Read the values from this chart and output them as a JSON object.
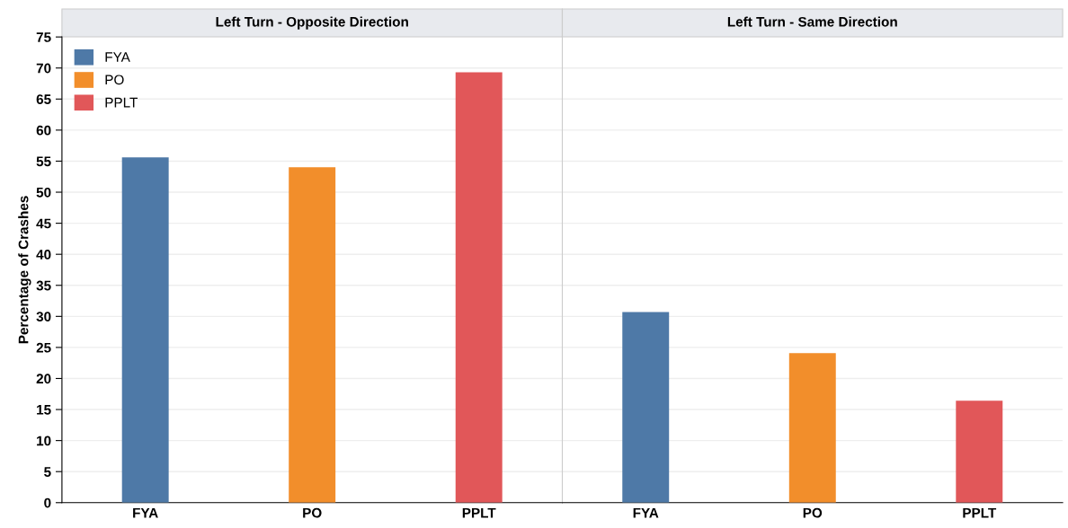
{
  "chart_data": [
    {
      "type": "bar",
      "title": "Left Turn - Opposite Direction",
      "ylabel": "Percentage of Crashes",
      "categories": [
        "FYA",
        "PO",
        "PPLT"
      ],
      "series": [
        {
          "name": "FYA",
          "color": "#4e79a7",
          "values": [
            55.6,
            null,
            null
          ]
        },
        {
          "name": "PO",
          "color": "#f28e2b",
          "values": [
            null,
            54.0,
            null
          ]
        },
        {
          "name": "PPLT",
          "color": "#e15759",
          "values": [
            null,
            null,
            69.3
          ]
        }
      ],
      "ylim": [
        0,
        75
      ],
      "yticks": [
        0,
        5,
        10,
        15,
        20,
        25,
        30,
        35,
        40,
        45,
        50,
        55,
        60,
        65,
        70,
        75
      ],
      "grid": "y",
      "legend": "top left"
    },
    {
      "type": "bar",
      "title": "Left Turn - Same Direction",
      "categories": [
        "FYA",
        "PO",
        "PPLT"
      ],
      "series": [
        {
          "color": "#4e79a7",
          "values": [
            30.7,
            null,
            null
          ]
        },
        {
          "color": "#f28e2b",
          "values": [
            null,
            24.1,
            null
          ]
        },
        {
          "color": "#e15759",
          "values": [
            null,
            null,
            16.4
          ]
        }
      ],
      "ylim": [
        0,
        75
      ],
      "yticks": [
        0,
        5,
        10,
        15,
        20,
        25,
        30,
        35,
        40,
        45,
        50,
        55,
        60,
        65,
        70,
        75
      ],
      "grid": "y",
      "tick_labels": "x"
    }
  ]
}
